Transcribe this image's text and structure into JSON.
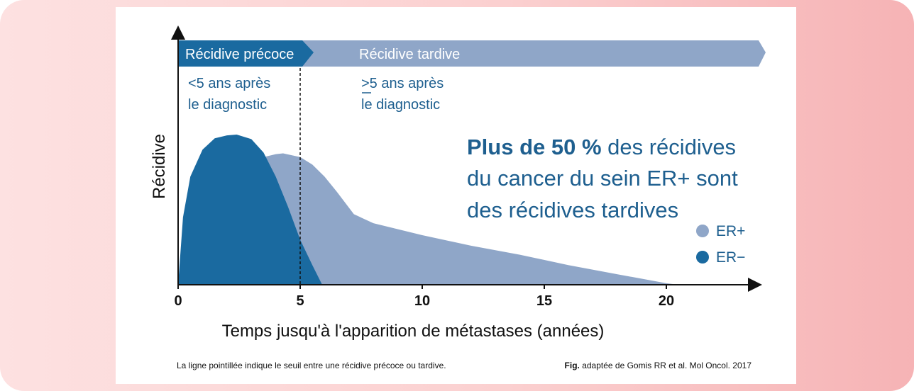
{
  "colors": {
    "background_left": "#fde1e1",
    "background_right": "#f6b3b5",
    "card": "#ffffff",
    "er_pos": "#8fa6c8",
    "er_neg": "#1a6aa0",
    "banner_dark": "#1a6aa0",
    "banner_light": "#8fa6c8",
    "text_blue": "#1e5f8f",
    "axis": "#111111"
  },
  "banner": {
    "early_label": "Récidive précoce",
    "late_label": "Récidive tardive"
  },
  "annotations": {
    "early_line1": "<5 ans après",
    "early_line2": "le diagnostic",
    "late_line1": ">5 ans après",
    "late_line2": "le diagnostic"
  },
  "headline": {
    "bold": "Plus de 50 %",
    "line1_rest": " des récidives",
    "line2": "du cancer du sein ER+ sont",
    "line3": "des récidives tardives"
  },
  "footer": {
    "note": "La ligne pointillée indique le seuil entre une récidive précoce ou tardive.",
    "fig_bold": "Fig.",
    "fig_rest": " adaptée de Gomis RR et al. Mol Oncol. 2017"
  },
  "chart_data": {
    "type": "area",
    "xlabel": "Temps jusqu'à l'apparition de métastases (années)",
    "ylabel": "Récidive",
    "xticks": [
      "0",
      "5",
      "10",
      "15",
      "20"
    ],
    "xtick_values": [
      0,
      5,
      10,
      15,
      20
    ],
    "xlim": [
      0,
      23.8
    ],
    "ylim": [
      0,
      1
    ],
    "threshold_years": 5,
    "legend_position": "right",
    "series": [
      {
        "name": "ER+",
        "x": [
          0,
          0.5,
          1,
          2,
          3,
          3.5,
          4,
          4.3,
          5,
          5.5,
          6,
          6.5,
          7.2,
          8,
          10,
          12,
          14,
          16,
          18,
          20,
          20.5
        ],
        "y": [
          0,
          0.1,
          0.25,
          0.55,
          0.8,
          0.85,
          0.87,
          0.875,
          0.85,
          0.8,
          0.72,
          0.62,
          0.47,
          0.41,
          0.33,
          0.26,
          0.2,
          0.13,
          0.07,
          0.01,
          0
        ]
      },
      {
        "name": "ER−",
        "x": [
          0,
          0.2,
          0.5,
          1,
          1.5,
          2,
          2.4,
          3,
          3.5,
          4,
          4.5,
          5,
          5.5,
          5.9
        ],
        "y": [
          0,
          0.45,
          0.72,
          0.9,
          0.975,
          0.995,
          1.0,
          0.97,
          0.88,
          0.72,
          0.52,
          0.3,
          0.13,
          0
        ]
      }
    ]
  }
}
